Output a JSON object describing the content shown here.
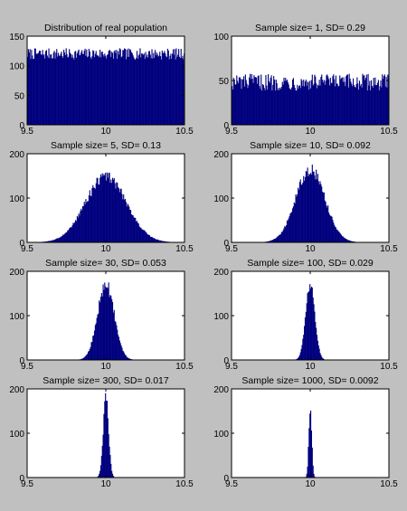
{
  "figure": {
    "background": "#c0c0c0",
    "axes_background": "#ffffff",
    "bar_color": "#00007f"
  },
  "chart_data": [
    {
      "type": "bar",
      "title": "Distribution of real population",
      "xlim": [
        9.5,
        10.5
      ],
      "ylim": [
        0,
        150
      ],
      "xticks": [
        "9.5",
        "10",
        "10.5"
      ],
      "yticks": [
        "0",
        "50",
        "100",
        "150"
      ],
      "distribution": {
        "kind": "uniform",
        "low": 9.5,
        "high": 10.5,
        "level": 120,
        "noise": 6
      },
      "grid": false
    },
    {
      "type": "bar",
      "title": "Sample size= 1, SD= 0.29",
      "xlim": [
        9.5,
        10.5
      ],
      "ylim": [
        0,
        100
      ],
      "xticks": [
        "9.5",
        "10",
        "10.5"
      ],
      "yticks": [
        "0",
        "50",
        "100"
      ],
      "distribution": {
        "kind": "uniform",
        "low": 9.5,
        "high": 10.5,
        "level": 48,
        "noise": 6
      },
      "grid": false
    },
    {
      "type": "bar",
      "title": "Sample size= 5, SD= 0.13",
      "xlim": [
        9.5,
        10.5
      ],
      "ylim": [
        0,
        200
      ],
      "xticks": [
        "9.5",
        "10",
        "10.5"
      ],
      "yticks": [
        "0",
        "100",
        "200"
      ],
      "distribution": {
        "kind": "normal",
        "mean": 10,
        "sd": 0.13,
        "peak": 148
      },
      "grid": false
    },
    {
      "type": "bar",
      "title": "Sample size= 10, SD= 0.092",
      "xlim": [
        9.5,
        10.5
      ],
      "ylim": [
        0,
        200
      ],
      "xticks": [
        "9.5",
        "10",
        "10.5"
      ],
      "yticks": [
        "0",
        "100",
        "200"
      ],
      "distribution": {
        "kind": "normal",
        "mean": 10,
        "sd": 0.092,
        "peak": 165
      },
      "grid": false
    },
    {
      "type": "bar",
      "title": "Sample size= 30, SD= 0.053",
      "xlim": [
        9.5,
        10.5
      ],
      "ylim": [
        0,
        200
      ],
      "xticks": [
        "9.5",
        "10",
        "10.5"
      ],
      "yticks": [
        "0",
        "100",
        "200"
      ],
      "distribution": {
        "kind": "normal",
        "mean": 10,
        "sd": 0.053,
        "peak": 170
      },
      "grid": false
    },
    {
      "type": "bar",
      "title": "Sample size= 100, SD= 0.029",
      "xlim": [
        9.5,
        10.5
      ],
      "ylim": [
        0,
        200
      ],
      "xticks": [
        "9.5",
        "10",
        "10.5"
      ],
      "yticks": [
        "0",
        "100",
        "200"
      ],
      "distribution": {
        "kind": "normal",
        "mean": 10,
        "sd": 0.029,
        "peak": 168
      },
      "grid": false
    },
    {
      "type": "bar",
      "title": "Sample size= 300, SD= 0.017",
      "xlim": [
        9.5,
        10.5
      ],
      "ylim": [
        0,
        200
      ],
      "xticks": [
        "9.5",
        "10",
        "10.5"
      ],
      "yticks": [
        "0",
        "100",
        "200"
      ],
      "distribution": {
        "kind": "normal",
        "mean": 10,
        "sd": 0.017,
        "peak": 180
      },
      "grid": false
    },
    {
      "type": "bar",
      "title": "Sample size= 1000, SD= 0.0092",
      "xlim": [
        9.5,
        10.5
      ],
      "ylim": [
        0,
        200
      ],
      "xticks": [
        "9.5",
        "10",
        "10.5"
      ],
      "yticks": [
        "0",
        "100",
        "200"
      ],
      "distribution": {
        "kind": "normal",
        "mean": 10,
        "sd": 0.0092,
        "peak": 160
      },
      "grid": false
    }
  ]
}
